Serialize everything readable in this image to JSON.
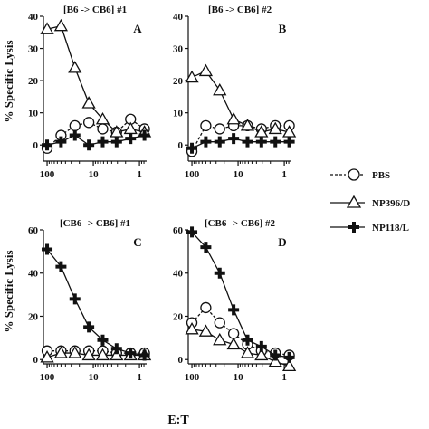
{
  "figure": {
    "ylabel_top": "% Specific Lysis",
    "ylabel_bottom": "% Specific Lysis",
    "xlabel": "E:T"
  },
  "legend": {
    "items": [
      {
        "label": "PBS",
        "marker": "circle",
        "line": "dashed"
      },
      {
        "label": "NP396/D",
        "marker": "triangle",
        "line": "solid"
      },
      {
        "label": "NP118/L",
        "marker": "cross",
        "line": "solid"
      }
    ]
  },
  "chart_data": [
    {
      "type": "line",
      "panel": "A",
      "title": "[B6 -> CB6] #1",
      "x_scale": "log",
      "x_reversed": true,
      "xlim": [
        120,
        0.7
      ],
      "ylim": [
        -5,
        40
      ],
      "yticks": [
        0,
        10,
        20,
        30,
        40
      ],
      "xticks": [
        100,
        10,
        1
      ],
      "x": [
        100,
        50,
        25,
        12.5,
        6.25,
        3.13,
        1.56,
        0.78
      ],
      "series": [
        {
          "name": "PBS",
          "marker": "circle",
          "values": [
            -1,
            3,
            6,
            7,
            5,
            4,
            8,
            5
          ]
        },
        {
          "name": "NP396/D",
          "marker": "triangle",
          "values": [
            36,
            37,
            24,
            13,
            8,
            4,
            5,
            4
          ]
        },
        {
          "name": "NP118/L",
          "marker": "cross",
          "values": [
            0,
            1,
            3,
            0,
            1,
            1,
            2,
            3
          ]
        }
      ]
    },
    {
      "type": "line",
      "panel": "B",
      "title": "[B6 -> CB6] #2",
      "x_scale": "log",
      "x_reversed": true,
      "xlim": [
        120,
        0.7
      ],
      "ylim": [
        -5,
        40
      ],
      "yticks": [
        0,
        10,
        20,
        30,
        40
      ],
      "xticks": [
        100,
        10,
        1
      ],
      "x": [
        100,
        50,
        25,
        12.5,
        6.25,
        3.13,
        1.56,
        0.78
      ],
      "series": [
        {
          "name": "PBS",
          "marker": "circle",
          "values": [
            -2,
            6,
            5,
            6,
            6,
            5,
            6,
            6
          ]
        },
        {
          "name": "NP396/D",
          "marker": "triangle",
          "values": [
            21,
            23,
            17,
            8,
            6,
            4,
            5,
            4
          ]
        },
        {
          "name": "NP118/L",
          "marker": "cross",
          "values": [
            -1,
            1,
            1,
            2,
            1,
            1,
            1,
            1
          ]
        }
      ]
    },
    {
      "type": "line",
      "panel": "C",
      "title": "[CB6 -> CB6] #1",
      "x_scale": "log",
      "x_reversed": true,
      "xlim": [
        120,
        0.7
      ],
      "ylim": [
        -2,
        60
      ],
      "yticks": [
        0,
        20,
        40,
        60
      ],
      "xticks": [
        100,
        10,
        1
      ],
      "x": [
        100,
        50,
        25,
        12.5,
        6.25,
        3.13,
        1.56,
        0.78
      ],
      "series": [
        {
          "name": "PBS",
          "marker": "circle",
          "values": [
            4,
            4,
            4,
            4,
            4,
            3,
            3,
            3
          ]
        },
        {
          "name": "NP396/D",
          "marker": "triangle",
          "values": [
            1,
            3,
            3,
            2,
            2,
            2,
            2,
            2
          ]
        },
        {
          "name": "NP118/L",
          "marker": "cross",
          "values": [
            51,
            43,
            28,
            15,
            9,
            5,
            3,
            2
          ]
        }
      ]
    },
    {
      "type": "line",
      "panel": "D",
      "title": "[CB6 -> CB6] #2",
      "x_scale": "log",
      "x_reversed": true,
      "xlim": [
        120,
        0.7
      ],
      "ylim": [
        -2,
        60
      ],
      "yticks": [
        0,
        20,
        40,
        60
      ],
      "xticks": [
        100,
        10,
        1
      ],
      "x": [
        100,
        50,
        25,
        12.5,
        6.25,
        3.13,
        1.56,
        0.78
      ],
      "series": [
        {
          "name": "PBS",
          "marker": "circle",
          "values": [
            17,
            24,
            17,
            12,
            7,
            4,
            3,
            2
          ]
        },
        {
          "name": "NP396/D",
          "marker": "triangle",
          "values": [
            14,
            13,
            9,
            7,
            3,
            2,
            -1,
            -3
          ]
        },
        {
          "name": "NP118/L",
          "marker": "cross",
          "values": [
            59,
            52,
            40,
            23,
            9,
            6,
            2,
            1
          ]
        }
      ]
    }
  ]
}
